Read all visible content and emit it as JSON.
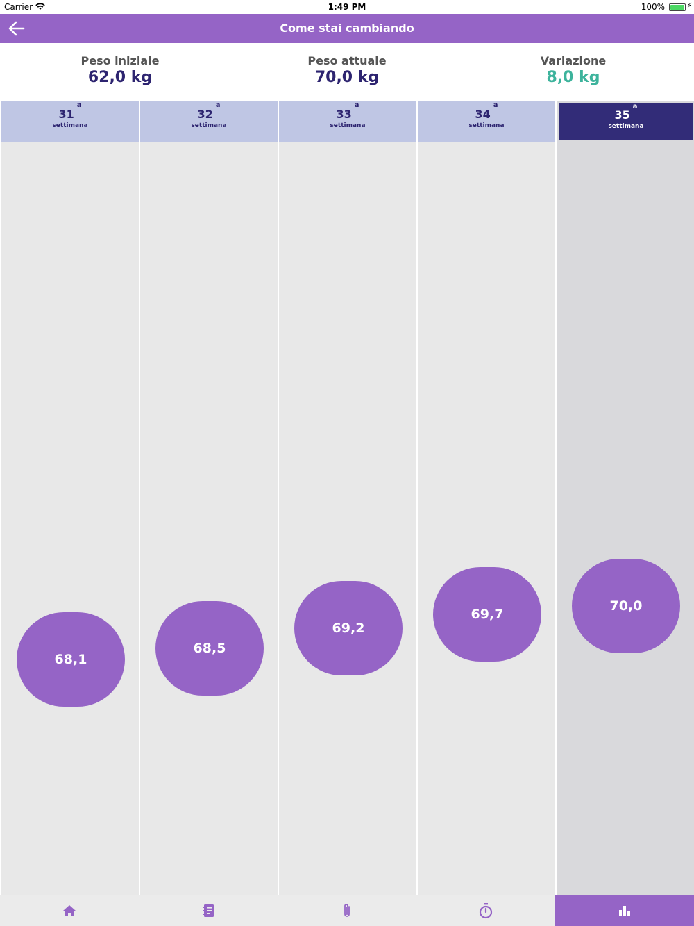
{
  "status_bar": {
    "carrier": "Carrier",
    "time": "1:49 PM",
    "battery": "100%"
  },
  "nav": {
    "title": "Come stai cambiando",
    "back_icon": "arrow-left-icon"
  },
  "summary": {
    "initial": {
      "label": "Peso iniziale",
      "value": "62,0 kg"
    },
    "current": {
      "label": "Peso attuale",
      "value": "70,0 kg"
    },
    "change": {
      "label": "Variazione",
      "value": "8,0 kg"
    }
  },
  "colors": {
    "accent": "#9564c6",
    "dark": "#322c78",
    "green": "#3db39c",
    "week_header": "#bfc6e4"
  },
  "weeks": [
    {
      "num": "31",
      "sup": "a",
      "label": "settimana",
      "value": "68,1",
      "weight": 68.1,
      "selected": false
    },
    {
      "num": "32",
      "sup": "a",
      "label": "settimana",
      "value": "68,5",
      "weight": 68.5,
      "selected": false
    },
    {
      "num": "33",
      "sup": "a",
      "label": "settimana",
      "value": "69,2",
      "weight": 69.2,
      "selected": false
    },
    {
      "num": "34",
      "sup": "a",
      "label": "settimana",
      "value": "69,7",
      "weight": 69.7,
      "selected": false
    },
    {
      "num": "35",
      "sup": "a",
      "label": "settimana",
      "value": "70,0",
      "weight": 70.0,
      "selected": true
    }
  ],
  "tabs": [
    {
      "icon": "home-icon",
      "active": false
    },
    {
      "icon": "notebook-icon",
      "active": false
    },
    {
      "icon": "paperclip-icon",
      "active": false
    },
    {
      "icon": "stopwatch-icon",
      "active": false
    },
    {
      "icon": "bar-chart-icon",
      "active": true
    }
  ]
}
